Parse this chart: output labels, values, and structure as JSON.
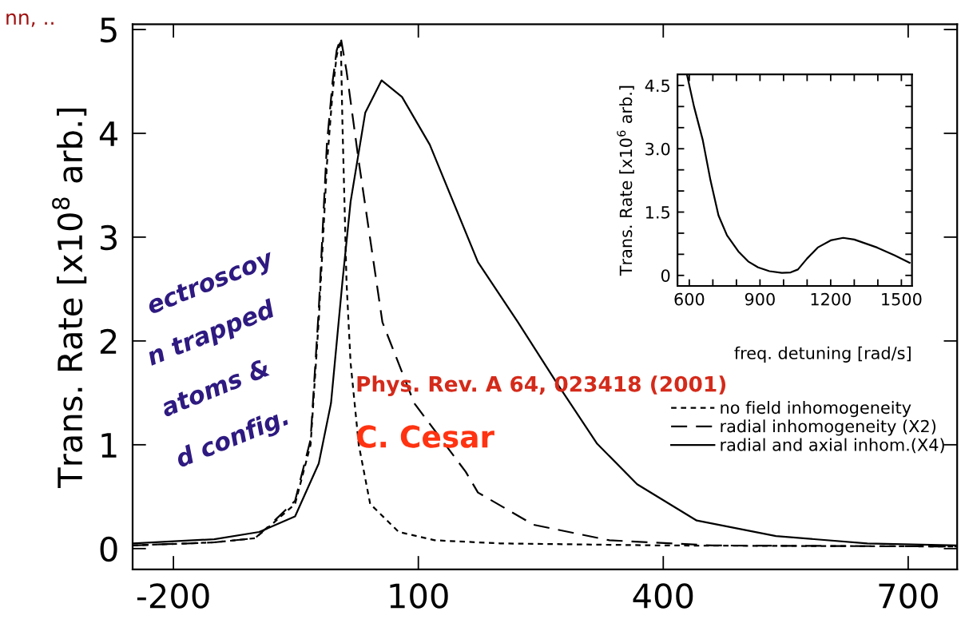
{
  "chart_data": [
    {
      "type": "line",
      "ylabel": "Trans. Rate [x10$^{8}$ arb.]",
      "xlim": [
        -250,
        760
      ],
      "ylim": [
        -0.2,
        5.05
      ],
      "xticks": [
        -200,
        100,
        400,
        700
      ],
      "yticks": [
        0,
        1,
        2,
        3,
        4,
        5
      ],
      "series": [
        {
          "name": "no field inhomogeneity",
          "color": "#000000",
          "line_style": "dotted",
          "x": [
            -250,
            -150,
            -100,
            -80,
            -51,
            -32,
            -22,
            -12,
            -5,
            0,
            5,
            7,
            12,
            17,
            27,
            41,
            76,
            120,
            200,
            400,
            760
          ],
          "values": [
            0.03,
            0.06,
            0.1,
            0.23,
            0.43,
            1.0,
            2.2,
            3.7,
            4.4,
            4.75,
            4.9,
            4.1,
            2.57,
            1.79,
            1.0,
            0.43,
            0.16,
            0.08,
            0.05,
            0.03,
            0.02
          ]
        },
        {
          "name": "radial inhomogeneity (X2)",
          "color": "#000000",
          "line_style": "dashed",
          "x": [
            -250,
            -150,
            -100,
            -80,
            -51,
            -32,
            -22,
            -12,
            -5,
            0,
            5,
            12,
            27,
            56,
            95,
            158,
            173,
            241,
            334,
            460,
            760
          ],
          "values": [
            0.03,
            0.06,
            0.1,
            0.24,
            0.46,
            1.05,
            2.3,
            3.9,
            4.5,
            4.8,
            4.92,
            4.6,
            3.73,
            2.18,
            1.4,
            0.74,
            0.54,
            0.23,
            0.08,
            0.03,
            0.02
          ]
        },
        {
          "name": "radial and axial inhom.(X4)",
          "color": "#000000",
          "line_style": "solid",
          "x": [
            -250,
            -150,
            -95,
            -51,
            -22,
            -7,
            7,
            17,
            35,
            55,
            80,
            114,
            173,
            222,
            270,
            319,
            368,
            441,
            538,
            650,
            760
          ],
          "values": [
            0.05,
            0.09,
            0.16,
            0.31,
            0.82,
            1.4,
            2.57,
            3.34,
            4.2,
            4.51,
            4.35,
            3.89,
            2.76,
            2.18,
            1.59,
            1.01,
            0.62,
            0.27,
            0.12,
            0.05,
            0.03
          ]
        }
      ],
      "legend": "right",
      "annotations": [
        "Phys. Rev. A 64, 023418 (2001)",
        "C. Cesar",
        "ectroscoy",
        "n trapped",
        "atoms &",
        "d config.",
        "nn, .."
      ]
    },
    {
      "type": "line",
      "xlabel": "freq. detuning [rad/s]",
      "ylabel": "Trans. Rate [x10$^{6}$ arb.]",
      "xlim": [
        550,
        1545
      ],
      "ylim": [
        -0.25,
        4.76
      ],
      "xticks": [
        600,
        {
          "value": 700,
          "label": null
        },
        {
          "value": 800,
          "label": null
        },
        900,
        {
          "value": 1000,
          "label": null
        },
        {
          "value": 1100,
          "label": null
        },
        1200,
        {
          "value": 1300,
          "label": null
        },
        {
          "value": 1400,
          "label": null
        },
        1500
      ],
      "yticks": [
        0,
        {
          "value": 0.5,
          "label": null
        },
        {
          "value": 1.0,
          "label": null
        },
        {
          "value": 1.5,
          "label": "1.5"
        },
        {
          "value": 2.0,
          "label": null
        },
        {
          "value": 2.5,
          "label": null
        },
        {
          "value": 3.0,
          "label": "3.0"
        },
        {
          "value": 3.5,
          "label": null
        },
        {
          "value": 4.0,
          "label": null
        },
        {
          "value": 4.5,
          "label": "4.5"
        }
      ],
      "series": [
        {
          "color": "#000000",
          "line_style": "solid",
          "x": [
            590,
            620,
            657,
            690,
            724,
            760,
            808,
            850,
            892,
            940,
            993,
            1030,
            1061,
            1100,
            1145,
            1200,
            1253,
            1300,
            1397,
            1470,
            1535
          ],
          "values": [
            4.76,
            4.0,
            3.21,
            2.25,
            1.42,
            0.95,
            0.57,
            0.33,
            0.19,
            0.1,
            0.06,
            0.07,
            0.14,
            0.4,
            0.66,
            0.83,
            0.89,
            0.85,
            0.66,
            0.48,
            0.3
          ]
        }
      ]
    }
  ]
}
